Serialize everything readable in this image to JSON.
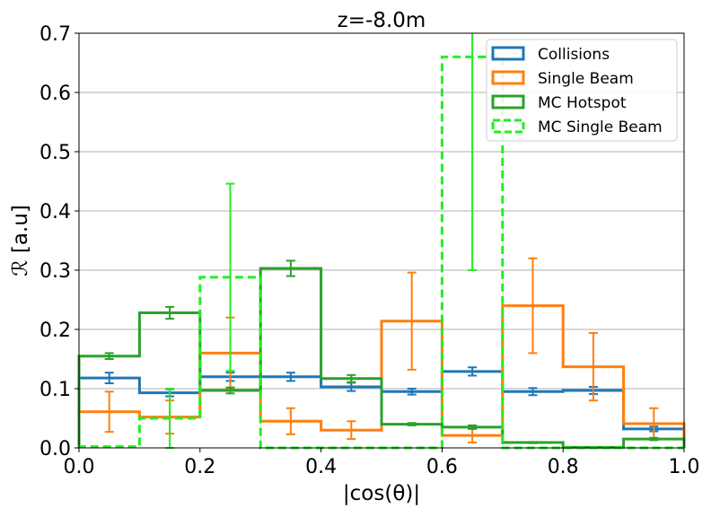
{
  "chart_data": {
    "type": "histogram-step",
    "title": "z=-8.0m",
    "xlabel": "|cos(θ)|",
    "ylabel": "ℛ [a.u]",
    "xlim": [
      0.0,
      1.0
    ],
    "ylim": [
      0.0,
      0.7
    ],
    "xticks": [
      "0.0",
      "0.2",
      "0.4",
      "0.6",
      "0.8",
      "1.0"
    ],
    "yticks": [
      "0.0",
      "0.1",
      "0.2",
      "0.3",
      "0.4",
      "0.5",
      "0.6",
      "0.7"
    ],
    "grid": "horizontal",
    "legend_position": "top-right",
    "bin_edges": [
      0.0,
      0.1,
      0.2,
      0.3,
      0.4,
      0.5,
      0.6,
      0.7,
      0.8,
      0.9,
      1.0
    ],
    "series": [
      {
        "name": "Collisions",
        "color": "#1f77b4",
        "dashed": false,
        "values": [
          0.118,
          0.093,
          0.12,
          0.12,
          0.103,
          0.095,
          0.129,
          0.095,
          0.097,
          0.032
        ],
        "errors": [
          0.009,
          0.006,
          0.007,
          0.007,
          0.007,
          0.005,
          0.007,
          0.006,
          0.006,
          0.004
        ]
      },
      {
        "name": "Single Beam",
        "color": "#ff7f0e",
        "dashed": false,
        "values": [
          0.061,
          0.052,
          0.16,
          0.045,
          0.03,
          0.214,
          0.021,
          0.24,
          0.137,
          0.041
        ],
        "errors": [
          0.034,
          0.028,
          0.06,
          0.022,
          0.015,
          0.082,
          0.012,
          0.08,
          0.057,
          0.026
        ]
      },
      {
        "name": "MC Hotspot",
        "color": "#2ca02c",
        "dashed": false,
        "values": [
          0.155,
          0.228,
          0.097,
          0.303,
          0.117,
          0.04,
          0.035,
          0.009,
          0.001,
          0.015
        ],
        "errors": [
          0.005,
          0.01,
          0.005,
          0.013,
          0.006,
          0.002,
          0.003,
          0.001,
          0.0,
          0.002
        ]
      },
      {
        "name": "MC Single Beam",
        "color": "#22ee22",
        "dashed": true,
        "values": [
          0.002,
          0.05,
          0.288,
          0.0,
          0.0,
          0.0,
          0.66,
          0.0,
          0.0,
          0.0
        ],
        "errors": [
          0.0,
          0.05,
          0.158,
          0.0,
          0.0,
          0.0,
          0.36,
          0.0,
          0.0,
          0.0
        ]
      }
    ]
  }
}
